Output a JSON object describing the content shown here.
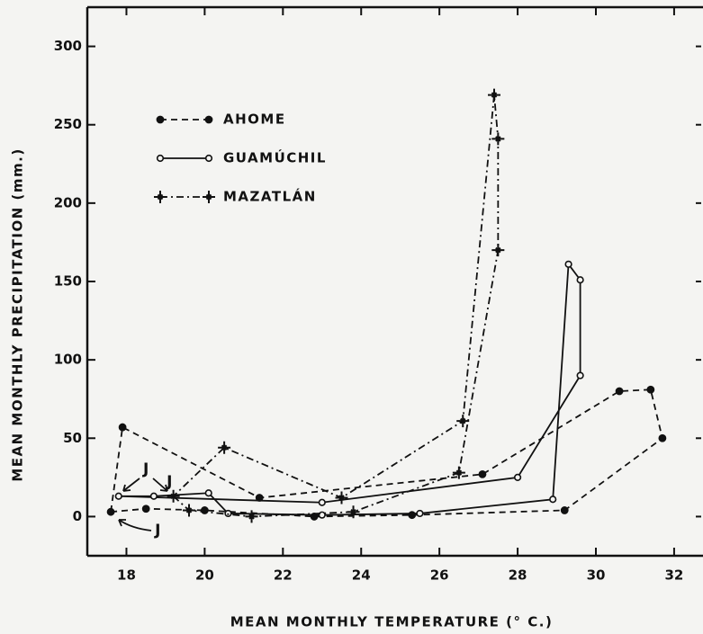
{
  "chart_data": {
    "type": "line",
    "x_label": "MEAN MONTHLY TEMPERATURE (° C.)",
    "y_label": "MEAN MONTHLY PRECIPITATION (mm.)",
    "xlim": [
      17,
      32.6
    ],
    "ylim": [
      -25,
      325
    ],
    "xticks": [
      18,
      20,
      22,
      24,
      26,
      28,
      30,
      32
    ],
    "yticks": [
      0,
      50,
      100,
      150,
      200,
      250,
      300
    ],
    "closed_loops": true,
    "legend": "upper left",
    "series": [
      {
        "name": "AHOME",
        "color": "#111111",
        "line_style": "dashed",
        "marker": "filled-circle",
        "x": [
          17.6,
          18.5,
          20.0,
          22.8,
          25.3,
          29.2,
          31.7,
          31.4,
          30.6,
          27.1,
          21.4,
          17.9
        ],
        "values": [
          3,
          5,
          4,
          0,
          1,
          4,
          50,
          81,
          80,
          27,
          12,
          57
        ]
      },
      {
        "name": "GUAMÚCHIL",
        "color": "#111111",
        "line_style": "solid",
        "marker": "open-circle",
        "x": [
          17.8,
          18.7,
          20.1,
          20.6,
          23.0,
          25.5,
          28.9,
          29.3,
          29.6,
          29.6,
          28.0,
          23.0
        ],
        "values": [
          13,
          13,
          15,
          2,
          1,
          2,
          11,
          161,
          151,
          90,
          25,
          9
        ]
      },
      {
        "name": "MAZATLÁN",
        "color": "#111111",
        "line_style": "dashdot",
        "marker": "star",
        "x": [
          19.2,
          19.6,
          21.2,
          23.8,
          26.5,
          27.5,
          27.5,
          27.4,
          26.6,
          23.5,
          20.5
        ],
        "values": [
          13,
          4,
          0,
          3,
          28,
          170,
          241,
          269,
          61,
          12,
          44
        ]
      }
    ],
    "annotations": [
      {
        "text": "J",
        "x": 18.5,
        "y": 30
      },
      {
        "text": "J",
        "x": 19.1,
        "y": 22
      },
      {
        "text": "J",
        "x": 18.8,
        "y": -9
      }
    ]
  }
}
